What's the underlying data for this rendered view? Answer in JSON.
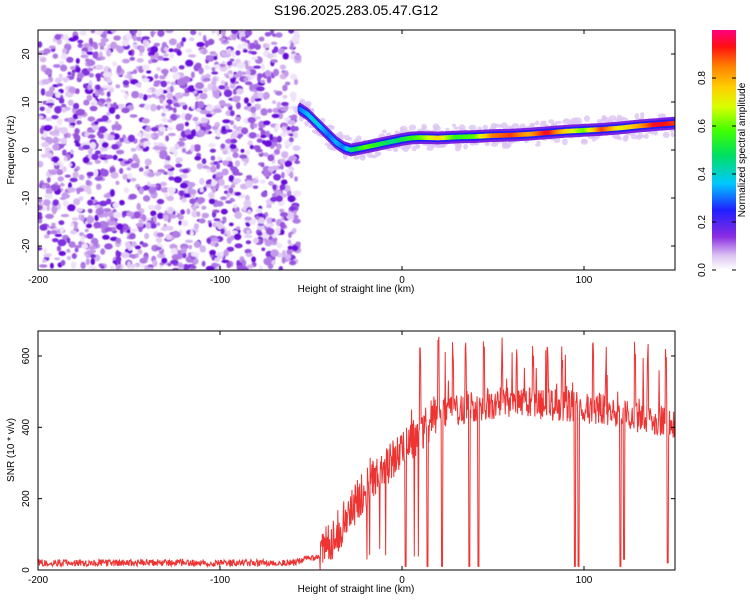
{
  "title": "S196.2025.283.05.47.G12",
  "chart_data": [
    {
      "type": "heatmap",
      "title": "S196.2025.283.05.47.G12",
      "xlabel": "Height of straight line (km)",
      "ylabel": "Frequency (Hz)",
      "xlim": [
        -200,
        150
      ],
      "ylim": [
        -25,
        25
      ],
      "xticks": [
        -200,
        -100,
        0,
        100
      ],
      "yticks": [
        -20,
        -10,
        0,
        10,
        20
      ],
      "colorbar": {
        "label": "Normalized spectral amplitude",
        "range": [
          0,
          1
        ],
        "ticks": [
          0,
          0.2,
          0.4,
          0.6,
          0.8
        ],
        "tick_labels": [
          "0.0",
          "0.2",
          "0.4",
          "0.6",
          "0.8"
        ]
      },
      "noise_region_x": [
        -200,
        -57
      ],
      "ridge": {
        "x": [
          -56,
          -52,
          -48,
          -44,
          -40,
          -36,
          -32,
          -28,
          -24,
          -20,
          -15,
          -10,
          -5,
          0,
          5,
          10,
          20,
          30,
          40,
          50,
          60,
          70,
          80,
          90,
          100,
          110,
          120,
          130,
          140,
          150
        ],
        "freq": [
          8.5,
          7.5,
          6,
          4.5,
          3,
          1.5,
          0.5,
          0,
          0.3,
          0.6,
          1,
          1.4,
          1.8,
          2.2,
          2.5,
          2.6,
          2.5,
          2.7,
          2.8,
          3,
          3.1,
          3.3,
          3.6,
          3.9,
          4.1,
          4.3,
          4.6,
          5,
          5.3,
          5.6
        ],
        "amplitude": [
          0.3,
          0.35,
          0.4,
          0.35,
          0.3,
          0.35,
          0.3,
          0.45,
          0.5,
          0.6,
          0.55,
          0.5,
          0.45,
          0.5,
          0.55,
          0.6,
          0.75,
          0.55,
          0.6,
          0.85,
          0.9,
          0.8,
          0.95,
          0.75,
          0.6,
          0.9,
          0.7,
          0.8,
          0.95,
          0.9
        ]
      }
    },
    {
      "type": "line",
      "title": "",
      "xlabel": "Height of straight line (km)",
      "ylabel": "SNR (10 * v/v)",
      "xlim": [
        -200,
        150
      ],
      "ylim": [
        0,
        670
      ],
      "xticks": [
        -200,
        -100,
        0,
        100
      ],
      "yticks": [
        0,
        200,
        400,
        600
      ],
      "series": [
        {
          "name": "SNR",
          "color": "#ee3333",
          "x": [
            -200,
            -150,
            -100,
            -60,
            -45,
            -40,
            -35,
            -30,
            -25,
            -20,
            -15,
            -10,
            -5,
            0,
            5,
            10,
            15,
            20,
            30,
            40,
            50,
            60,
            70,
            80,
            90,
            100,
            110,
            120,
            130,
            140,
            150
          ],
          "y": [
            20,
            20,
            20,
            22,
            40,
            80,
            110,
            150,
            190,
            230,
            260,
            290,
            310,
            330,
            360,
            390,
            410,
            430,
            450,
            460,
            465,
            470,
            468,
            465,
            460,
            455,
            450,
            440,
            430,
            420,
            410
          ]
        }
      ],
      "spikes_up_x": [
        10,
        20,
        28,
        35,
        45,
        55,
        63,
        72,
        80,
        88,
        95,
        105,
        112,
        120,
        128,
        135,
        145
      ],
      "spikes_down": [
        {
          "x": 2,
          "y": 10
        },
        {
          "x": 14,
          "y": 10
        },
        {
          "x": 22,
          "y": 10
        },
        {
          "x": 37,
          "y": 10
        },
        {
          "x": 42,
          "y": 10
        },
        {
          "x": 95,
          "y": 10
        },
        {
          "x": 97,
          "y": 10
        },
        {
          "x": 120,
          "y": 10
        },
        {
          "x": 122,
          "y": 30
        },
        {
          "x": 146,
          "y": 20
        }
      ]
    }
  ]
}
